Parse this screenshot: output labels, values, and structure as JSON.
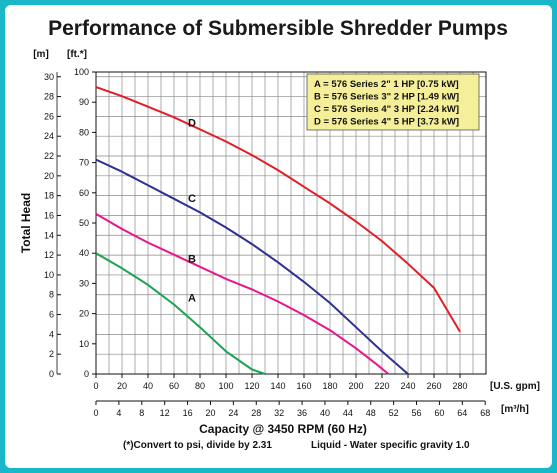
{
  "chart_data": {
    "type": "line",
    "title": "Performance of Submersible Shredder Pumps",
    "xlabel": "Capacity @ 3450 RPM (60 Hz)",
    "ylabel": "Total Head",
    "x_unit": "[U.S. gpm]",
    "x2_unit": "[m³/h]",
    "y_unit_left": "[m]",
    "y_unit_right": "[ft.*]",
    "xlim": [
      0,
      300
    ],
    "ylim": [
      0,
      100
    ],
    "x_ticks": [
      0,
      20,
      40,
      60,
      80,
      100,
      120,
      140,
      160,
      180,
      200,
      220,
      240,
      260,
      280
    ],
    "x2_ticks": [
      0,
      4,
      8,
      12,
      16,
      20,
      24,
      28,
      32,
      36,
      40,
      44,
      48,
      52,
      56,
      60,
      64,
      68
    ],
    "y_ticks_ft": [
      0,
      10,
      20,
      30,
      40,
      50,
      60,
      70,
      80,
      90,
      100
    ],
    "y_ticks_m": [
      0,
      2,
      4,
      6,
      8,
      10,
      12,
      14,
      16,
      18,
      20,
      22,
      24,
      26,
      28,
      30
    ],
    "grid": true,
    "legend_position": "top-right",
    "legend": [
      "A = 576 Series 2\" 1 HP [0.75 kW]",
      "B = 576 Series 3\" 2 HP [1.49 kW]",
      "C = 576 Series 4\" 3 HP [2.24 kW]",
      "D = 576 Series 4\" 5 HP [3.73 kW]"
    ],
    "series": [
      {
        "name": "A",
        "color": "#1aa352",
        "label_at": [
          60,
          24
        ],
        "x": [
          0,
          20,
          40,
          60,
          80,
          100,
          120,
          130
        ],
        "y": [
          40,
          35,
          29.5,
          23,
          15.5,
          7.5,
          1.5,
          0
        ]
      },
      {
        "name": "B",
        "color": "#e8168a",
        "label_at": [
          60,
          37
        ],
        "x": [
          0,
          20,
          40,
          60,
          80,
          100,
          120,
          140,
          160,
          180,
          200,
          215,
          225
        ],
        "y": [
          53,
          48,
          43.5,
          39.5,
          35.5,
          31.5,
          28,
          24,
          19.5,
          14.5,
          8.5,
          3.5,
          0
        ]
      },
      {
        "name": "C",
        "color": "#2e3192",
        "label_at": [
          60,
          57
        ],
        "x": [
          0,
          20,
          40,
          60,
          80,
          100,
          120,
          140,
          160,
          180,
          200,
          220,
          240
        ],
        "y": [
          71,
          67,
          62.5,
          58,
          53.5,
          48.5,
          43,
          37,
          30.5,
          23.5,
          15.5,
          7.5,
          0
        ]
      },
      {
        "name": "D",
        "color": "#e21e26",
        "label_at": [
          60,
          82
        ],
        "x": [
          0,
          20,
          40,
          60,
          80,
          100,
          120,
          140,
          160,
          180,
          200,
          220,
          240,
          260,
          280
        ],
        "y": [
          95,
          92,
          88.5,
          85,
          81,
          77,
          72.5,
          67.5,
          62,
          56.5,
          50.5,
          44,
          36.5,
          28.5,
          14
        ]
      }
    ],
    "footnote_left": "(*)Convert to psi, divide by 2.31",
    "footnote_right": "Liquid - Water specific gravity 1.0"
  }
}
